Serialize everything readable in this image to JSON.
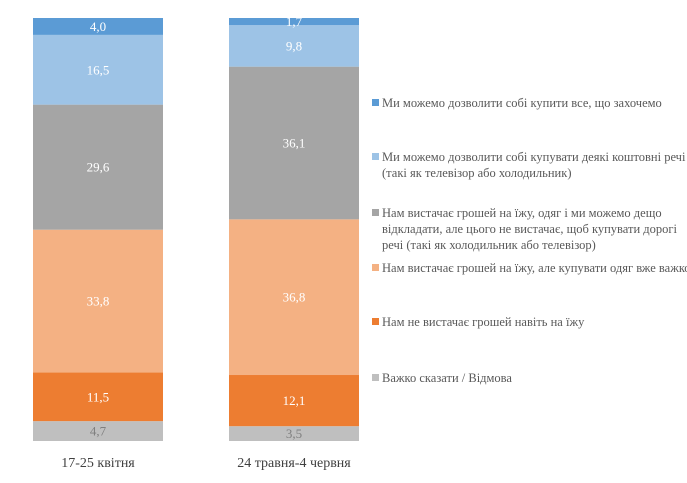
{
  "chart_data": {
    "type": "bar",
    "stacked": true,
    "categories": [
      "17-25 квітня",
      "24 травня-4 червня"
    ],
    "series": [
      {
        "name": "Ми можемо дозволити  собі купити все, що захочемо",
        "color": "#5B9BD5",
        "values": [
          4.0,
          1.7
        ],
        "labels": [
          "4,0",
          "1,7"
        ]
      },
      {
        "name": "Ми можемо дозволити  собі купувати деякі коштовні  речі (такі  як телевізор  або холодильник)",
        "color": "#9DC3E6",
        "values": [
          16.5,
          9.8
        ],
        "labels": [
          "16,5",
          "9,8"
        ]
      },
      {
        "name": "Нам вистачає грошей на їжу, одяг  і ми можемо дещо відкладати,  але цього не вистачає, щоб купувати дорогі речі (такі  як холодильник  або телевізор)",
        "color": "#A5A5A5",
        "values": [
          29.6,
          36.1
        ],
        "labels": [
          "29,6",
          "36,1"
        ]
      },
      {
        "name": "Нам вистачає грошей на їжу, але купувати одяг вже важко",
        "color": "#F4B183",
        "values": [
          33.8,
          36.8
        ],
        "labels": [
          "33,8",
          "36,8"
        ]
      },
      {
        "name": "Нам не вистачає грошей навіть  на їжу",
        "color": "#ED7D31",
        "values": [
          11.5,
          12.1
        ],
        "labels": [
          "11,5",
          "12,1"
        ]
      },
      {
        "name": "Важко  сказати / Відмова",
        "color": "#BFBFBF",
        "values": [
          4.7,
          3.5
        ],
        "labels": [
          "4,7",
          "3,5"
        ]
      }
    ],
    "ylim": [
      0,
      100
    ],
    "grid": false,
    "legend": "right"
  }
}
